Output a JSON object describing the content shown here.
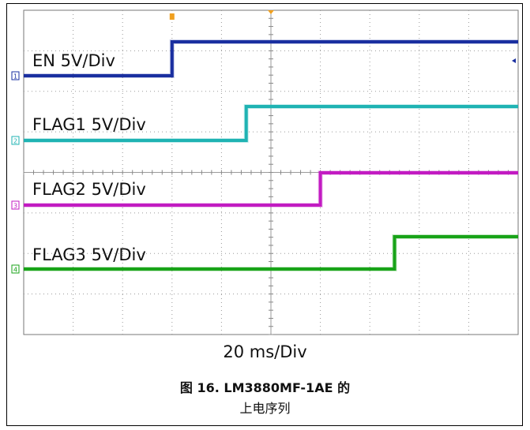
{
  "chart_data": {
    "type": "line",
    "title": "",
    "timebase": "20 ms/Div",
    "xlim": [
      0,
      200
    ],
    "x_unit": "ms",
    "divisions_x": 10,
    "divisions_y": 8,
    "grid": true,
    "series": [
      {
        "name": "EN 5V/Div",
        "channel": "1",
        "color": "#1a2fa0",
        "low": 0,
        "high": 5,
        "rise_ms": 60
      },
      {
        "name": "FLAG1 5V/Div",
        "channel": "2",
        "color": "#1fb3b3",
        "low": 0,
        "high": 5,
        "rise_ms": 90
      },
      {
        "name": "FLAG2 5V/Div",
        "channel": "3",
        "color": "#c21bc2",
        "low": 0,
        "high": 5,
        "rise_ms": 120
      },
      {
        "name": "FLAG3 5V/Div",
        "channel": "4",
        "color": "#19a319",
        "low": 0,
        "high": 5,
        "rise_ms": 150
      }
    ]
  },
  "caption": {
    "line1": "图 16. LM3880MF-1AE 的",
    "line2": "上电序列"
  }
}
